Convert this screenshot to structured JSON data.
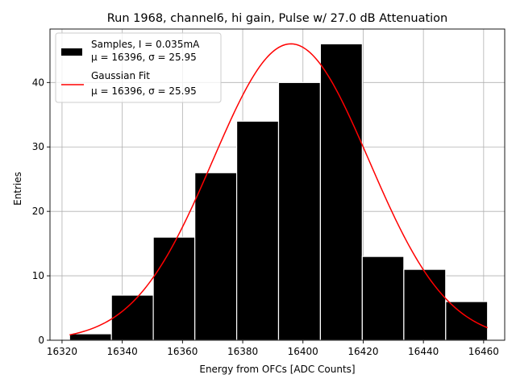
{
  "chart_data": {
    "type": "bar",
    "title": "Run 1968, channel6, hi gain, Pulse w/ 27.0 dB Attenuation",
    "xlabel": "Energy from OFCs [ADC Counts]",
    "ylabel": "Entries",
    "xlim": [
      16316,
      16467
    ],
    "ylim": [
      0,
      48.3
    ],
    "xticks": [
      16320,
      16340,
      16360,
      16380,
      16400,
      16420,
      16440,
      16460
    ],
    "yticks": [
      0,
      10,
      20,
      30,
      40
    ],
    "grid": true,
    "legend_position": "top-left",
    "bins": [
      {
        "x0": 16322.5,
        "x1": 16336.4,
        "count": 1
      },
      {
        "x0": 16336.4,
        "x1": 16350.3,
        "count": 7
      },
      {
        "x0": 16350.3,
        "x1": 16364.1,
        "count": 16
      },
      {
        "x0": 16364.1,
        "x1": 16378.0,
        "count": 26
      },
      {
        "x0": 16378.0,
        "x1": 16391.9,
        "count": 34
      },
      {
        "x0": 16391.9,
        "x1": 16405.8,
        "count": 40
      },
      {
        "x0": 16405.8,
        "x1": 16419.7,
        "count": 46
      },
      {
        "x0": 16419.7,
        "x1": 16433.5,
        "count": 13
      },
      {
        "x0": 16433.5,
        "x1": 16447.4,
        "count": 11
      },
      {
        "x0": 16447.4,
        "x1": 16461.3,
        "count": 6
      }
    ],
    "fit": {
      "mu": 16396,
      "sigma": 25.95,
      "peak": 46,
      "x_start": 16322.5,
      "x_end": 16461.3
    },
    "series": [
      {
        "name": "Samples, I = 0.035mA",
        "name_line2": "μ = 16396, σ = 25.95",
        "color": "#000000"
      },
      {
        "name": "Gaussian Fit",
        "name_line2": "μ = 16396, σ = 25.95",
        "color": "#ff0000"
      }
    ]
  }
}
